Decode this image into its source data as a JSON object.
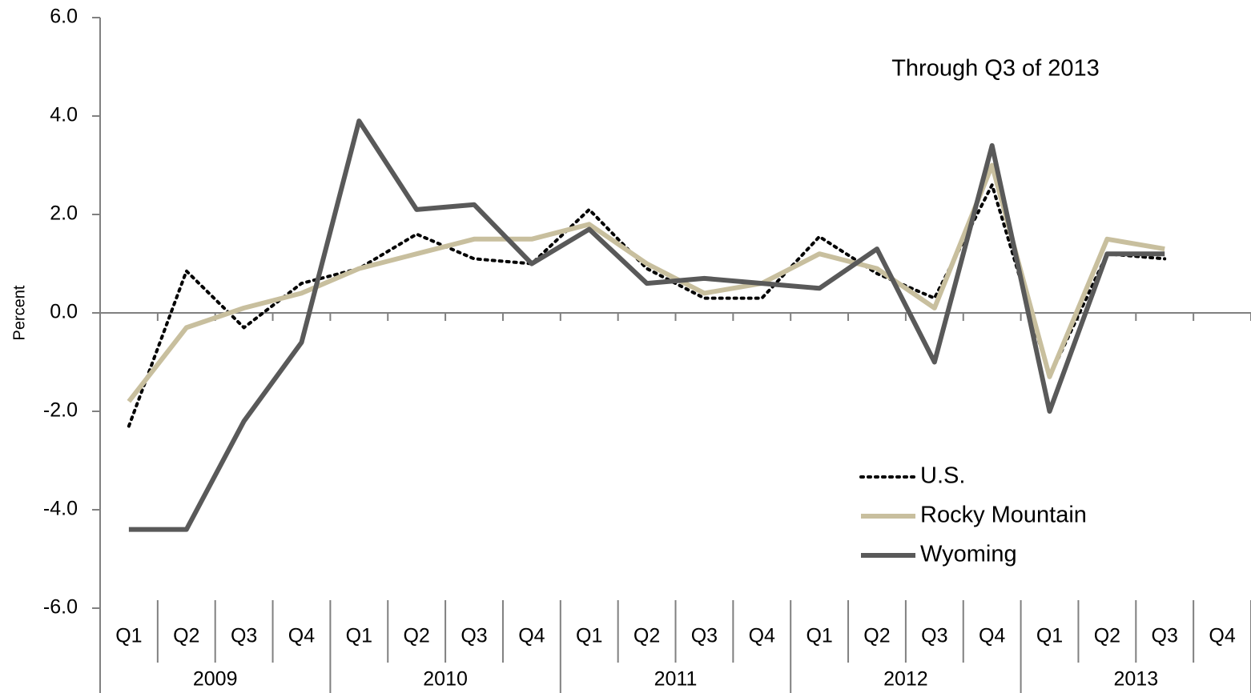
{
  "chart_data": {
    "type": "line",
    "y_label": "Percent",
    "annotation": "Through Q3 of 2013",
    "categories": [
      "Q1",
      "Q2",
      "Q3",
      "Q4",
      "Q1",
      "Q2",
      "Q3",
      "Q4",
      "Q1",
      "Q2",
      "Q3",
      "Q4",
      "Q1",
      "Q2",
      "Q3",
      "Q4",
      "Q1",
      "Q2",
      "Q3",
      "Q4"
    ],
    "years": [
      "2009",
      "2010",
      "2011",
      "2012",
      "2013"
    ],
    "series": [
      {
        "name": "U.S.",
        "color": "#000000",
        "dash": "dotted",
        "values": [
          -2.3,
          0.85,
          -0.3,
          0.6,
          0.9,
          1.6,
          1.1,
          1.0,
          2.1,
          0.9,
          0.3,
          0.3,
          1.55,
          0.8,
          0.3,
          2.6,
          -1.3,
          1.2,
          1.1,
          null
        ]
      },
      {
        "name": "Rocky Mountain",
        "color": "#c8bf9e",
        "dash": "solid",
        "values": [
          -1.8,
          -0.3,
          0.1,
          0.4,
          0.9,
          1.2,
          1.5,
          1.5,
          1.8,
          1.0,
          0.4,
          0.6,
          1.2,
          0.9,
          0.1,
          3.0,
          -1.3,
          1.5,
          1.3,
          null
        ]
      },
      {
        "name": "Wyoming",
        "color": "#595959",
        "dash": "solid",
        "values": [
          -4.4,
          -4.4,
          -2.2,
          -0.6,
          3.9,
          2.1,
          2.2,
          1.0,
          1.7,
          0.6,
          0.7,
          0.6,
          0.5,
          1.3,
          -1.0,
          3.4,
          -2.0,
          1.2,
          1.2,
          null
        ]
      }
    ],
    "ylim": [
      -6,
      6
    ],
    "yticks": [
      {
        "value": -6,
        "label": "-6.0"
      },
      {
        "value": -4,
        "label": "-4.0"
      },
      {
        "value": -2,
        "label": "-2.0"
      },
      {
        "value": 0,
        "label": "0.0"
      },
      {
        "value": 2,
        "label": "2.0"
      },
      {
        "value": 4,
        "label": "4.0"
      },
      {
        "value": 6,
        "label": "6.0"
      }
    ],
    "legend": "lower right"
  }
}
